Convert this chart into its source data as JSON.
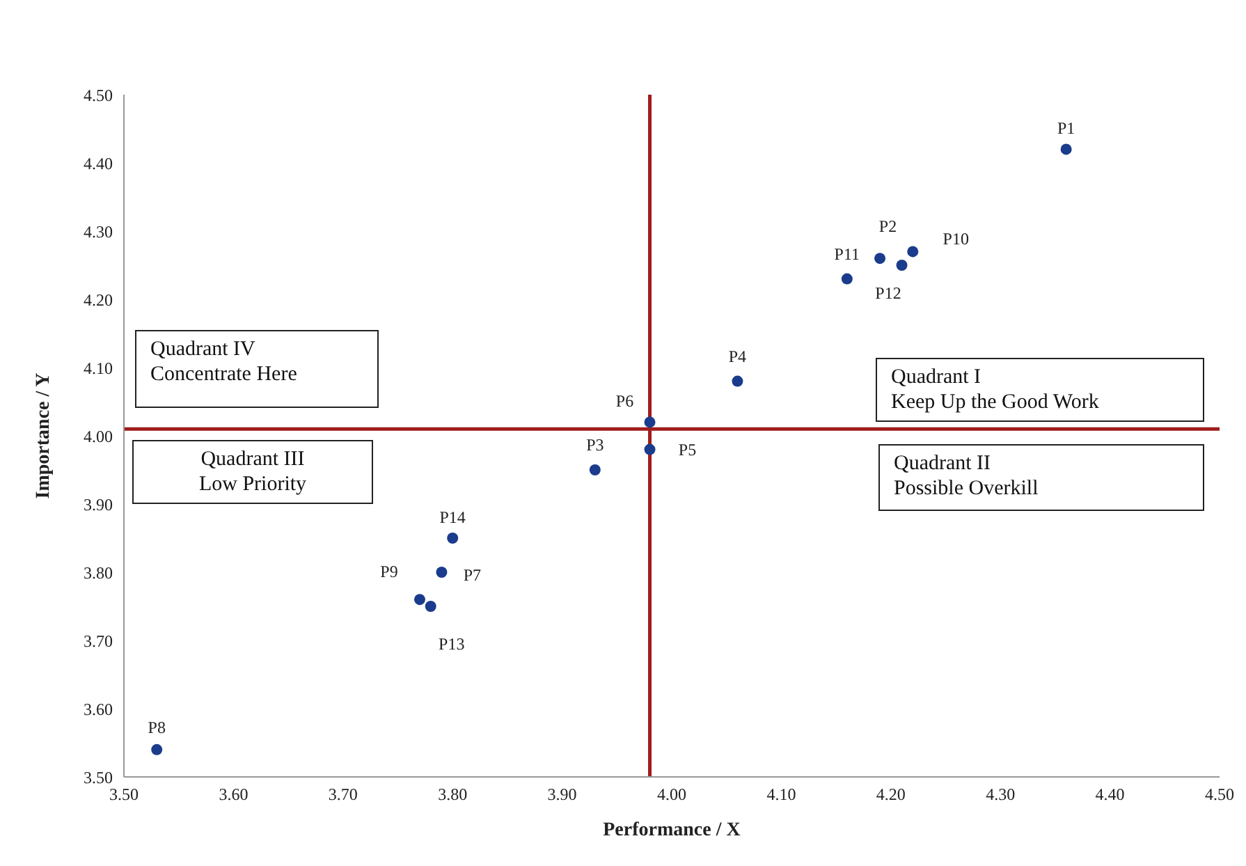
{
  "chart_data": {
    "type": "scatter",
    "xlabel": "Performance / X",
    "ylabel": "Importance /  Y",
    "x": [
      4.36,
      4.21,
      3.93,
      4.06,
      3.98,
      3.98,
      3.79,
      3.53,
      3.77,
      4.22,
      4.16,
      4.19,
      3.78,
      3.8
    ],
    "series": [
      {
        "color": "#1b3c8c",
        "values": [
          4.42,
          4.25,
          3.95,
          4.08,
          3.98,
          4.02,
          3.8,
          3.54,
          3.76,
          4.27,
          4.23,
          4.26,
          3.75,
          3.85
        ],
        "value_labels": [
          "P1",
          "P2",
          "P3",
          "P4",
          "P5",
          "P6",
          "P7",
          "P8",
          "P9",
          "P10",
          "P11",
          "P12",
          "P13",
          "P14"
        ]
      }
    ],
    "xlim": [
      3.5,
      4.5
    ],
    "xticks": [
      {
        "value": 3.5,
        "label": "3.50"
      },
      {
        "value": 3.6,
        "label": "3.60"
      },
      {
        "value": 3.7,
        "label": "3.70"
      },
      {
        "value": 3.8,
        "label": "3.80"
      },
      {
        "value": 3.9,
        "label": "3.90"
      },
      {
        "value": 4.0,
        "label": "4.00"
      },
      {
        "value": 4.1,
        "label": "4.10"
      },
      {
        "value": 4.2,
        "label": "4.20"
      },
      {
        "value": 4.3,
        "label": "4.30"
      },
      {
        "value": 4.4,
        "label": "4.40"
      },
      {
        "value": 4.5,
        "label": "4.50"
      }
    ],
    "ylim": [
      3.5,
      4.5
    ],
    "yticks": [
      {
        "value": 3.5,
        "label": "3.50"
      },
      {
        "value": 3.6,
        "label": "3.60"
      },
      {
        "value": 3.7,
        "label": "3.70"
      },
      {
        "value": 3.8,
        "label": "3.80"
      },
      {
        "value": 3.9,
        "label": "3.90"
      },
      {
        "value": 4.0,
        "label": "4.00"
      },
      {
        "value": 4.1,
        "label": "4.10"
      },
      {
        "value": 4.2,
        "label": "4.20"
      },
      {
        "value": 4.3,
        "label": "4.30"
      },
      {
        "value": 4.4,
        "label": "4.40"
      },
      {
        "value": 4.5,
        "label": "4.50"
      }
    ],
    "ref_lines": [
      {
        "axis": "x",
        "value": 3.98,
        "color": "#a01c1c"
      },
      {
        "axis": "y",
        "value": 4.01,
        "color": "#a01c1c"
      }
    ],
    "annotations": [
      "Quadrant IV\nConcentrate Here",
      "Quadrant III\nLow Priority",
      "Quadrant I\nKeep Up the Good Work",
      "Quadrant II\nPossible Overkill"
    ],
    "marker": "circle",
    "grid": false
  }
}
